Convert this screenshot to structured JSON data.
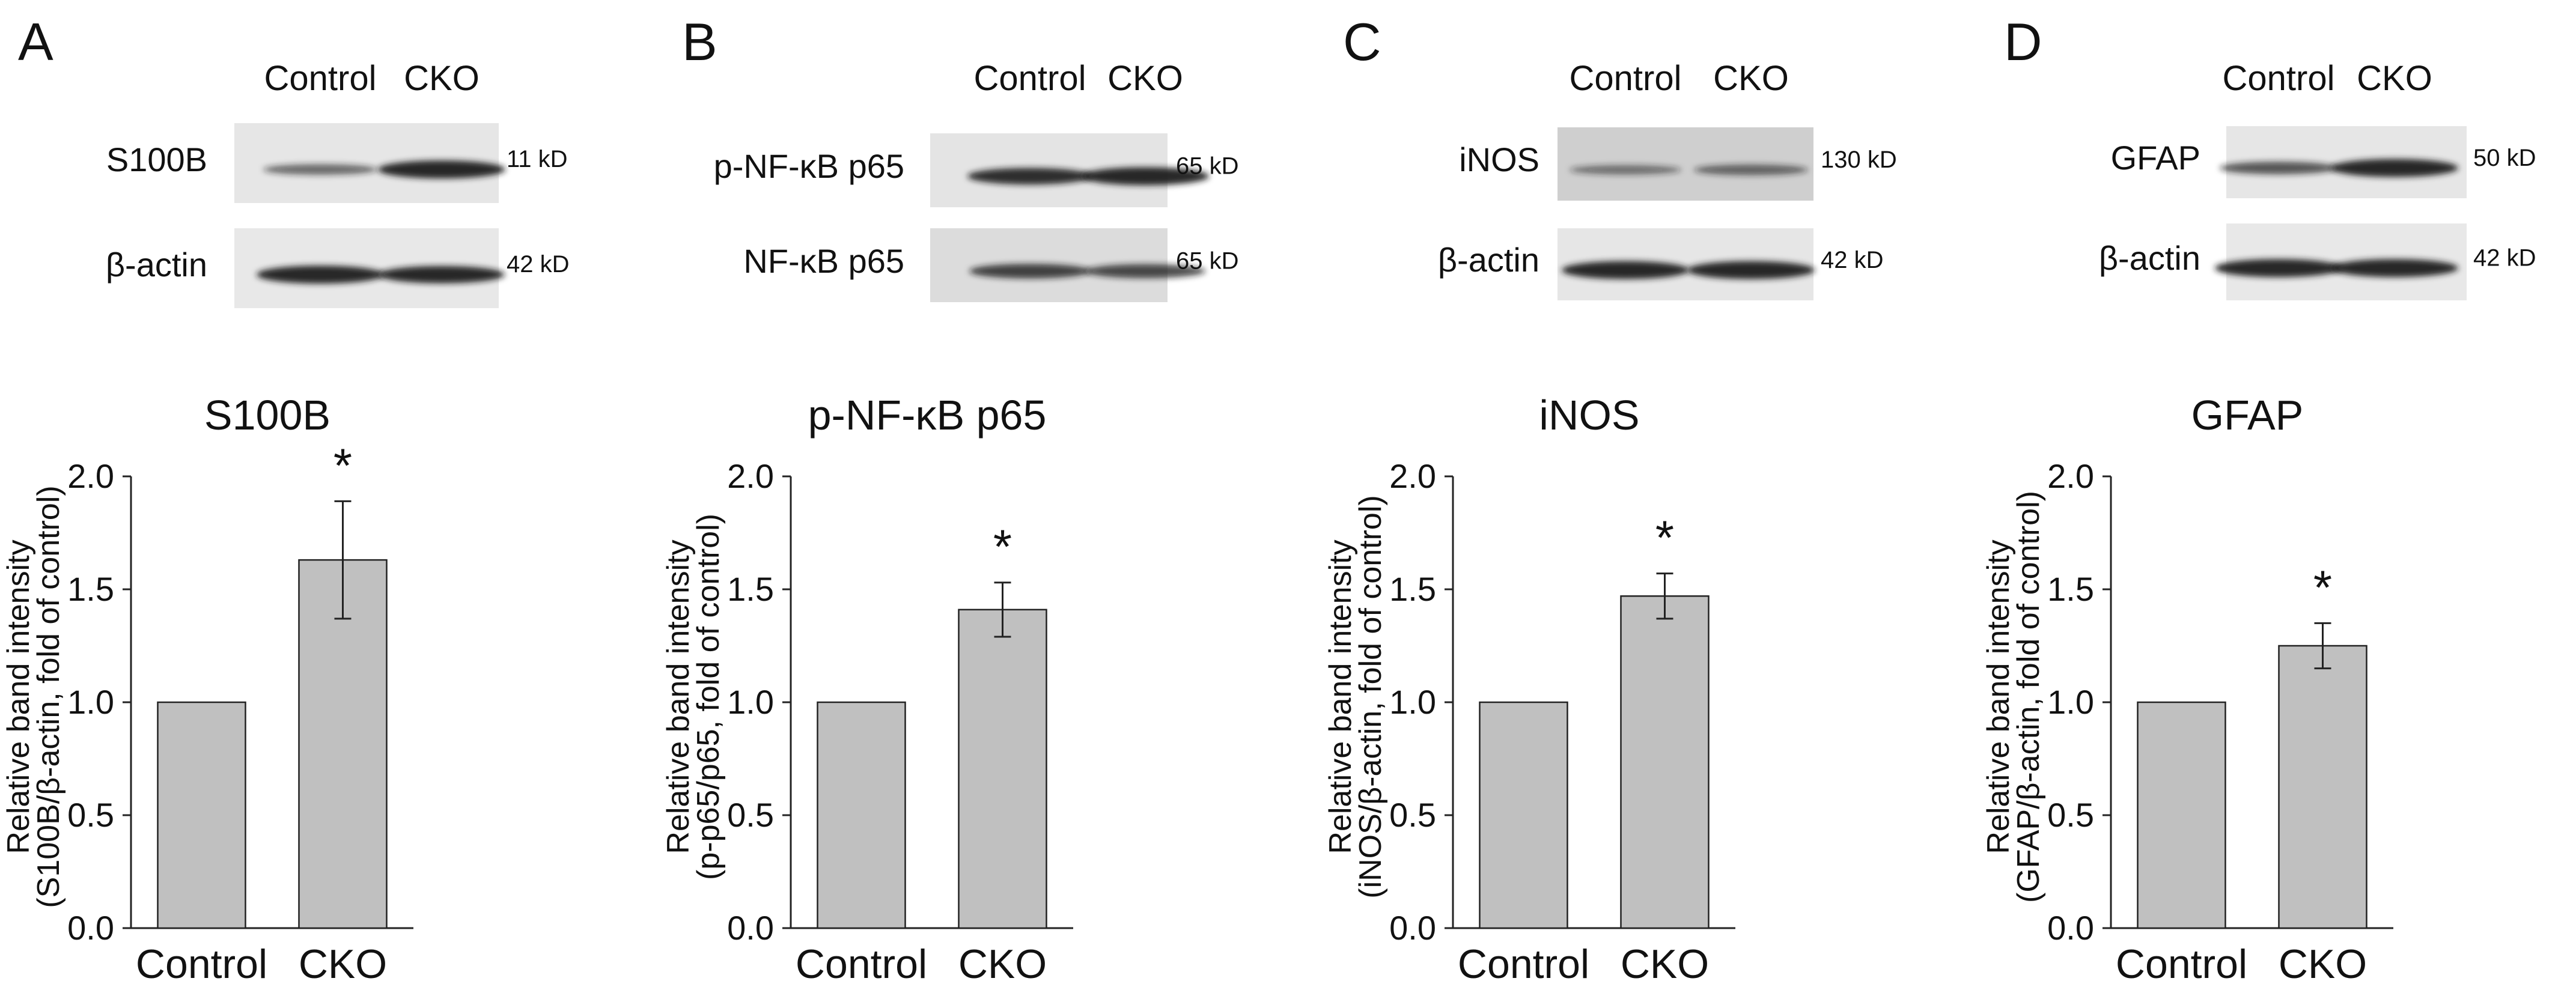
{
  "panels": [
    {
      "letter": "A",
      "lanes": [
        "Control",
        "CKO"
      ],
      "blots": [
        {
          "label": "S100B",
          "kd": "11 kD",
          "bands": [
            0.45,
            1.0
          ],
          "bg": "#e6e6e6"
        },
        {
          "label": "β-actin",
          "kd": "42 kD",
          "bands": [
            1.0,
            0.95
          ],
          "bg": "#e8e8e8"
        }
      ]
    },
    {
      "letter": "B",
      "lanes": [
        "Control",
        "CKO"
      ],
      "blots": [
        {
          "label": "p-NF-κB p65",
          "kd": "65 kD",
          "bands": [
            0.9,
            1.0
          ],
          "bg": "#e4e4e4"
        },
        {
          "label": "NF-κB p65",
          "kd": "65 kD",
          "bands": [
            0.75,
            0.7
          ],
          "bg": "#dcdcdc"
        }
      ]
    },
    {
      "letter": "C",
      "lanes": [
        "Control",
        "CKO"
      ],
      "blots": [
        {
          "label": "iNOS",
          "kd": "130 kD",
          "bands": [
            0.35,
            0.45
          ],
          "bg": "#cfcfcf"
        },
        {
          "label": "β-actin",
          "kd": "42 kD",
          "bands": [
            1.0,
            1.0
          ],
          "bg": "#e6e6e6"
        }
      ]
    },
    {
      "letter": "D",
      "lanes": [
        "Control",
        "CKO"
      ],
      "blots": [
        {
          "label": "GFAP",
          "kd": "50 kD",
          "bands": [
            0.6,
            1.0
          ],
          "bg": "#e6e6e6"
        },
        {
          "label": "β-actin",
          "kd": "42 kD",
          "bands": [
            1.0,
            1.0
          ],
          "bg": "#e8e8e8"
        }
      ]
    }
  ],
  "chart_data": [
    {
      "type": "bar",
      "title": "S100B",
      "categories": [
        "Control",
        "CKO"
      ],
      "values": [
        1.0,
        1.63
      ],
      "errors": [
        0.0,
        0.26
      ],
      "significance": [
        "",
        "*"
      ],
      "ylabel_lines": [
        "Relative band intensity",
        "(S100B/β-actin, fold of control)"
      ],
      "ylim": [
        0,
        2.0
      ],
      "yticks": [
        "0.0",
        "0.5",
        "1.0",
        "1.5",
        "2.0"
      ],
      "bar_color": "#c0c0c0"
    },
    {
      "type": "bar",
      "title": "p-NF-κB p65",
      "categories": [
        "Control",
        "CKO"
      ],
      "values": [
        1.0,
        1.41
      ],
      "errors": [
        0.0,
        0.12
      ],
      "significance": [
        "",
        "*"
      ],
      "ylabel_lines": [
        "Relative band intensity",
        "(p-p65/p65, fold of control)"
      ],
      "ylim": [
        0,
        2.0
      ],
      "yticks": [
        "0.0",
        "0.5",
        "1.0",
        "1.5",
        "2.0"
      ],
      "bar_color": "#c0c0c0"
    },
    {
      "type": "bar",
      "title": "iNOS",
      "categories": [
        "Control",
        "CKO"
      ],
      "values": [
        1.0,
        1.47
      ],
      "errors": [
        0.0,
        0.1
      ],
      "significance": [
        "",
        "*"
      ],
      "ylabel_lines": [
        "Relative band intensity",
        "(iNOS/β-actin, fold of control)"
      ],
      "ylim": [
        0,
        2.0
      ],
      "yticks": [
        "0.0",
        "0.5",
        "1.0",
        "1.5",
        "2.0"
      ],
      "bar_color": "#c0c0c0"
    },
    {
      "type": "bar",
      "title": "GFAP",
      "categories": [
        "Control",
        "CKO"
      ],
      "values": [
        1.0,
        1.25
      ],
      "errors": [
        0.0,
        0.1
      ],
      "significance": [
        "",
        "*"
      ],
      "ylabel_lines": [
        "Relative band intensity",
        "(GFAP/β-actin, fold of control)"
      ],
      "ylim": [
        0,
        2.0
      ],
      "yticks": [
        "0.0",
        "0.5",
        "1.0",
        "1.5",
        "2.0"
      ],
      "bar_color": "#c0c0c0"
    }
  ]
}
